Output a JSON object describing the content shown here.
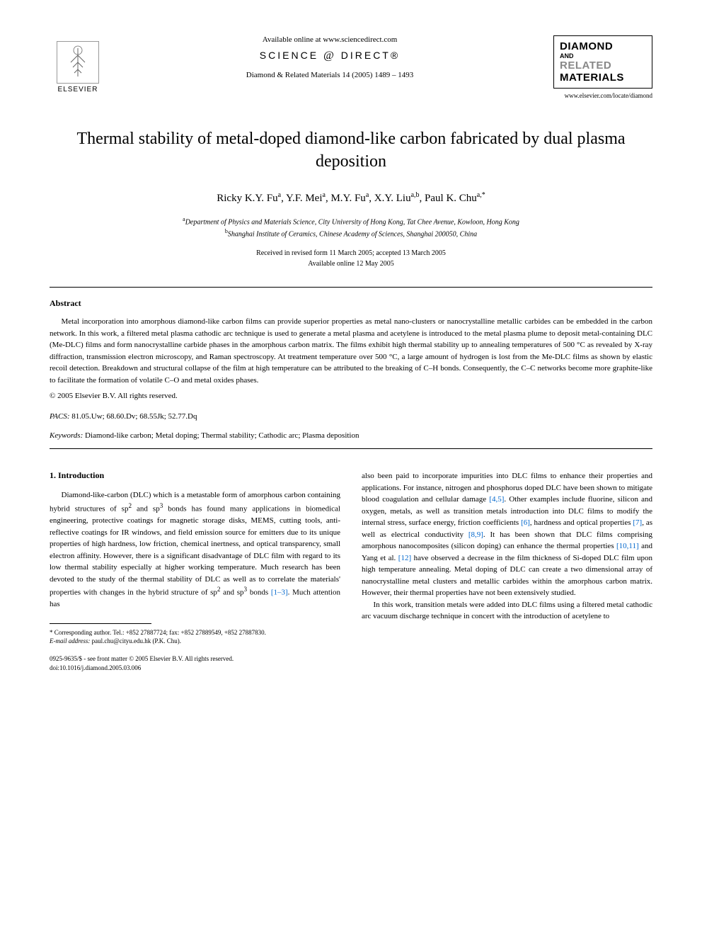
{
  "header": {
    "available_online": "Available online at www.sciencedirect.com",
    "sciencedirect_prefix": "SCIENCE",
    "sciencedirect_suffix": "DIRECT®",
    "journal_ref": "Diamond & Related Materials 14 (2005) 1489 – 1493",
    "elsevier_label": "ELSEVIER",
    "journal_box": {
      "line1": "DIAMOND",
      "line2": "AND",
      "line3": "RELATED",
      "line4": "MATERIALS"
    },
    "journal_url": "www.elsevier.com/locate/diamond"
  },
  "title": "Thermal stability of metal-doped diamond-like carbon fabricated by dual plasma deposition",
  "authors_html": "Ricky K.Y. Fu<sup>a</sup>, Y.F. Mei<sup>a</sup>, M.Y. Fu<sup>a</sup>, X.Y. Liu<sup>a,b</sup>, Paul K. Chu<sup>a,*</sup>",
  "affiliations": {
    "a": "Department of Physics and Materials Science, City University of Hong Kong, Tat Chee Avenue, Kowloon, Hong Kong",
    "b": "Shanghai Institute of Ceramics, Chinese Academy of Sciences, Shanghai 200050, China"
  },
  "dates": {
    "received": "Received in revised form 11 March 2005; accepted 13 March 2005",
    "online": "Available online 12 May 2005"
  },
  "abstract": {
    "heading": "Abstract",
    "text": "Metal incorporation into amorphous diamond-like carbon films can provide superior properties as metal nano-clusters or nanocrystalline metallic carbides can be embedded in the carbon network. In this work, a filtered metal plasma cathodic arc technique is used to generate a metal plasma and acetylene is introduced to the metal plasma plume to deposit metal-containing DLC (Me-DLC) films and form nanocrystalline carbide phases in the amorphous carbon matrix. The films exhibit high thermal stability up to annealing temperatures of 500 °C as revealed by X-ray diffraction, transmission electron microscopy, and Raman spectroscopy. At treatment temperature over 500 °C, a large amount of hydrogen is lost from the Me-DLC films as shown by elastic recoil detection. Breakdown and structural collapse of the film at high temperature can be attributed to the breaking of C–H bonds. Consequently, the C–C networks become more graphite-like to facilitate the formation of volatile C–O and metal oxides phases.",
    "copyright": "© 2005 Elsevier B.V. All rights reserved."
  },
  "pacs": {
    "label": "PACS:",
    "value": "81.05.Uw; 68.60.Dv; 68.55Jk; 52.77.Dq"
  },
  "keywords": {
    "label": "Keywords:",
    "value": "Diamond-like carbon; Metal doping; Thermal stability; Cathodic arc; Plasma deposition"
  },
  "section1": {
    "heading": "1. Introduction",
    "col1_html": "Diamond-like-carbon (DLC) which is a metastable form of amorphous carbon containing hybrid structures of sp<sup>2</sup> and sp<sup>3</sup> bonds has found many applications in biomedical engineering, protective coatings for magnetic storage disks, MEMS, cutting tools, anti-reflective coatings for IR windows, and field emission source for emitters due to its unique properties of high hardness, low friction, chemical inertness, and optical transparency, small electron affinity. However, there is a significant disadvantage of DLC film with regard to its low thermal stability especially at higher working temperature. Much research has been devoted to the study of the thermal stability of DLC as well as to correlate the materials' properties with changes in the hybrid structure of sp<sup>2</sup> and sp<sup>3</sup> bonds <span class=\"ref-link\">[1–3]</span>. Much attention has",
    "col2_p1_html": "also been paid to incorporate impurities into DLC films to enhance their properties and applications. For instance, nitrogen and phosphorus doped DLC have been shown to mitigate blood coagulation and cellular damage <span class=\"ref-link\">[4,5]</span>. Other examples include fluorine, silicon and oxygen, metals, as well as transition metals introduction into DLC films to modify the internal stress, surface energy, friction coefficients <span class=\"ref-link\">[6]</span>, hardness and optical properties <span class=\"ref-link\">[7]</span>, as well as electrical conductivity <span class=\"ref-link\">[8,9]</span>. It has been shown that DLC films comprising amorphous nanocomposites (silicon doping) can enhance the thermal properties <span class=\"ref-link\">[10,11]</span> and Yang et al. <span class=\"ref-link\">[12]</span> have observed a decrease in the film thickness of Si-doped DLC film upon high temperature annealing. Metal doping of DLC can create a two dimensional array of nanocrystalline metal clusters and metallic carbides within the amorphous carbon matrix. However, their thermal properties have not been extensively studied.",
    "col2_p2_html": "In this work, transition metals were added into DLC films using a filtered metal cathodic arc vacuum discharge technique in concert with the introduction of acetylene to"
  },
  "footnote": {
    "corresponding": "* Corresponding author. Tel.: +852 27887724; fax: +852 27889549, +852 27887830.",
    "email_label": "E-mail address:",
    "email": "paul.chu@cityu.edu.hk (P.K. Chu)."
  },
  "footer": {
    "line1": "0925-9635/$ - see front matter © 2005 Elsevier B.V. All rights reserved.",
    "line2": "doi:10.1016/j.diamond.2005.03.006"
  }
}
